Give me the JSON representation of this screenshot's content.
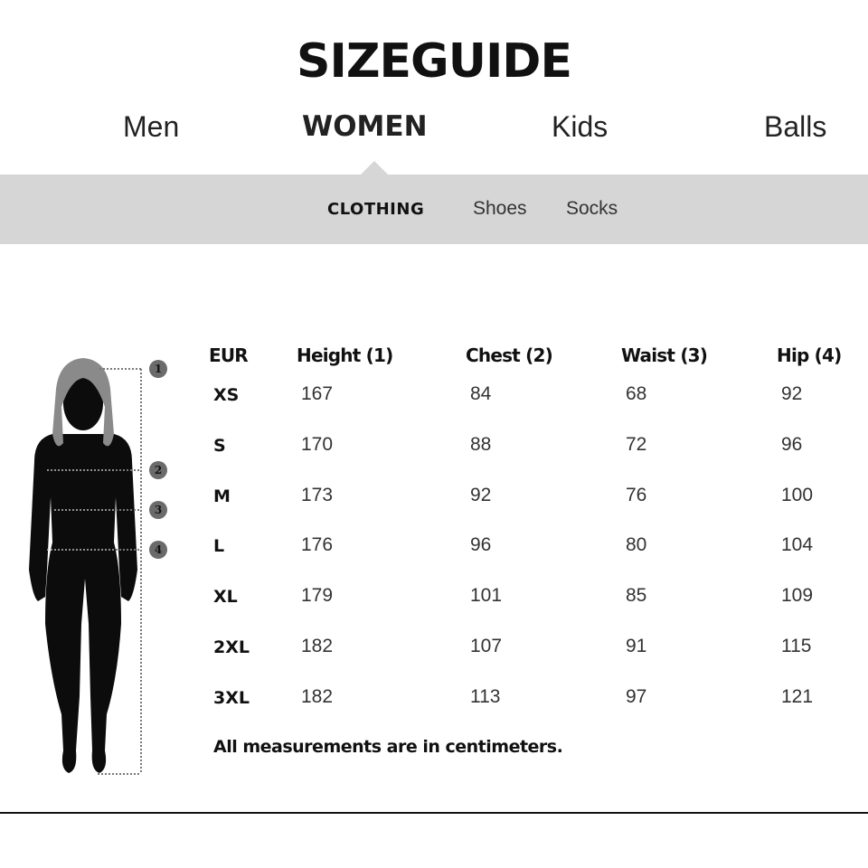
{
  "title": "SIZEGUIDE",
  "categories": [
    {
      "label": "Men",
      "active": false
    },
    {
      "label": "WOMEN",
      "active": true
    },
    {
      "label": "Kids",
      "active": false
    },
    {
      "label": "Balls",
      "active": false
    }
  ],
  "subcategories": [
    {
      "label": "CLOTHING",
      "active": true
    },
    {
      "label": "Shoes",
      "active": false
    },
    {
      "label": "Socks",
      "active": false
    }
  ],
  "table": {
    "headers": [
      "EUR",
      "Height (1)",
      "Chest (2)",
      "Waist (3)",
      "Hip (4)"
    ],
    "rows": [
      [
        "XS",
        "167",
        "84",
        "68",
        "92"
      ],
      [
        "S",
        "170",
        "88",
        "72",
        "96"
      ],
      [
        "M",
        "173",
        "92",
        "76",
        "100"
      ],
      [
        "L",
        "176",
        "96",
        "80",
        "104"
      ],
      [
        "XL",
        "179",
        "101",
        "85",
        "109"
      ],
      [
        "2XL",
        "182",
        "107",
        "91",
        "115"
      ],
      [
        "3XL",
        "182",
        "113",
        "97",
        "121"
      ]
    ]
  },
  "note": "All measurements are in centimeters.",
  "figure": {
    "markers": [
      "1",
      "2",
      "3",
      "4"
    ],
    "icon": "female-silhouette"
  },
  "colors": {
    "subnav_bg": "#d6d6d6",
    "text": "#111111",
    "marker": "#6b6b6b"
  }
}
